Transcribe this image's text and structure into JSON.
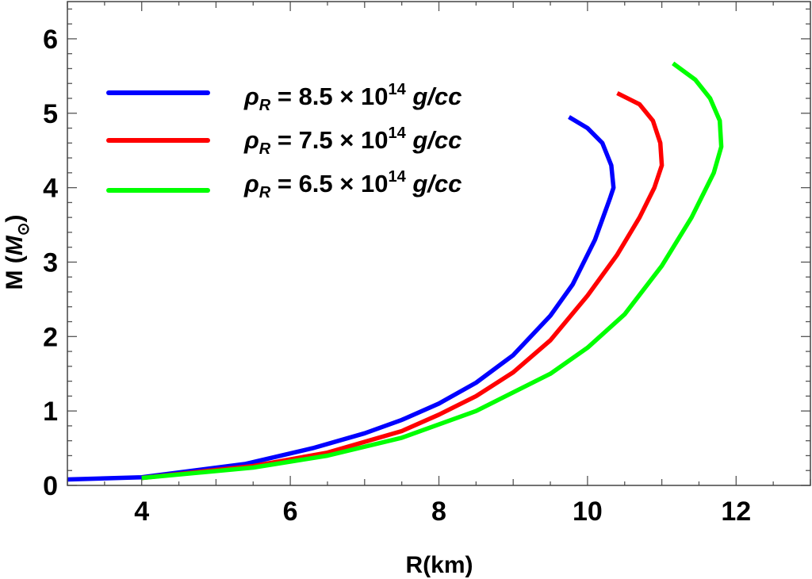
{
  "chart_data": {
    "type": "line",
    "title": "",
    "xlabel": "R(km)",
    "ylabel_prefix": "M (",
    "ylabel_unit": "M",
    "ylabel_sub": "⊙",
    "ylabel_suffix": ")",
    "xlim": [
      3,
      13
    ],
    "ylim": [
      0,
      6.5
    ],
    "xticks": [
      4,
      6,
      8,
      10,
      12
    ],
    "yticks": [
      0,
      1,
      2,
      3,
      4,
      5,
      6
    ],
    "grid": false,
    "legend_position": "top-left",
    "series": [
      {
        "name": "ρR = 8.5 × 10^14 g/cc",
        "legend": {
          "sym": "ρ",
          "sub": "R",
          "eq": " = 8.5 × 10",
          "sup": "14",
          "unit": " g/cc"
        },
        "color": "#0000ff",
        "points": [
          [
            3.0,
            0.08
          ],
          [
            4.0,
            0.11
          ],
          [
            5.4,
            0.29
          ],
          [
            6.3,
            0.5
          ],
          [
            7.0,
            0.7
          ],
          [
            7.5,
            0.88
          ],
          [
            8.0,
            1.1
          ],
          [
            8.5,
            1.38
          ],
          [
            9.0,
            1.75
          ],
          [
            9.5,
            2.28
          ],
          [
            9.8,
            2.7
          ],
          [
            10.1,
            3.3
          ],
          [
            10.3,
            3.85
          ],
          [
            10.35,
            4.0
          ],
          [
            10.32,
            4.3
          ],
          [
            10.2,
            4.6
          ],
          [
            10.0,
            4.8
          ],
          [
            9.75,
            4.95
          ]
        ]
      },
      {
        "name": "ρR = 7.5 × 10^14 g/cc",
        "legend": {
          "sym": "ρ",
          "sub": "R",
          "eq": " = 7.5 × 10",
          "sup": "14",
          "unit": " g/cc"
        },
        "color": "#ff0000",
        "points": [
          [
            4.0,
            0.1
          ],
          [
            5.5,
            0.26
          ],
          [
            6.5,
            0.44
          ],
          [
            7.5,
            0.73
          ],
          [
            8.0,
            0.95
          ],
          [
            8.5,
            1.2
          ],
          [
            9.0,
            1.52
          ],
          [
            9.5,
            1.95
          ],
          [
            10.0,
            2.55
          ],
          [
            10.4,
            3.1
          ],
          [
            10.7,
            3.6
          ],
          [
            10.9,
            4.0
          ],
          [
            11.0,
            4.3
          ],
          [
            10.98,
            4.6
          ],
          [
            10.88,
            4.9
          ],
          [
            10.7,
            5.12
          ],
          [
            10.4,
            5.27
          ]
        ]
      },
      {
        "name": "ρR = 6.5 × 10^14 g/cc",
        "legend": {
          "sym": "ρ",
          "sub": "R",
          "eq": " = 6.5 × 10",
          "sup": "14",
          "unit": " g/cc"
        },
        "color": "#00ff00",
        "points": [
          [
            4.0,
            0.1
          ],
          [
            5.5,
            0.24
          ],
          [
            6.5,
            0.4
          ],
          [
            7.5,
            0.64
          ],
          [
            8.5,
            1.0
          ],
          [
            9.5,
            1.5
          ],
          [
            10.0,
            1.85
          ],
          [
            10.5,
            2.3
          ],
          [
            11.0,
            2.95
          ],
          [
            11.4,
            3.6
          ],
          [
            11.7,
            4.2
          ],
          [
            11.8,
            4.55
          ],
          [
            11.78,
            4.9
          ],
          [
            11.65,
            5.2
          ],
          [
            11.45,
            5.45
          ],
          [
            11.15,
            5.67
          ]
        ]
      }
    ]
  }
}
